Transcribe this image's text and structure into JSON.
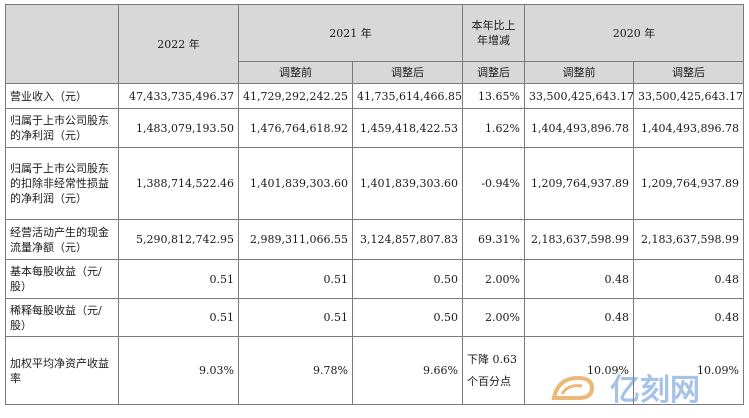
{
  "header": {
    "y2022": "2022 年",
    "y2021": "2021 年",
    "change": "本年比上年增减",
    "y2020": "2020 年",
    "before": "调整前",
    "after": "调整后",
    "change_after": "调整后"
  },
  "rows": [
    {
      "label": "营业收入（元）",
      "v2022": "47,433,735,496.37",
      "v2021b": "41,729,292,242.25",
      "v2021a": "41,735,614,466.85",
      "chg": "13.65%",
      "v2020b": "33,500,425,643.17",
      "v2020a": "33,500,425,643.17"
    },
    {
      "label": "归属于上市公司股东的净利润（元）",
      "v2022": "1,483,079,193.50",
      "v2021b": "1,476,764,618.92",
      "v2021a": "1,459,418,422.53",
      "chg": "1.62%",
      "v2020b": "1,404,493,896.78",
      "v2020a": "1,404,493,896.78"
    },
    {
      "label": "归属于上市公司股东的扣除非经常性损益的净利润（元）",
      "v2022": "1,388,714,522.46",
      "v2021b": "1,401,839,303.60",
      "v2021a": "1,401,839,303.60",
      "chg": "-0.94%",
      "v2020b": "1,209,764,937.89",
      "v2020a": "1,209,764,937.89"
    },
    {
      "label": "经营活动产生的现金流量净额（元）",
      "v2022": "5,290,812,742.95",
      "v2021b": "2,989,311,066.55",
      "v2021a": "3,124,857,807.83",
      "chg": "69.31%",
      "v2020b": "2,183,637,598.99",
      "v2020a": "2,183,637,598.99"
    },
    {
      "label": "基本每股收益（元/股）",
      "v2022": "0.51",
      "v2021b": "0.51",
      "v2021a": "0.50",
      "chg": "2.00%",
      "v2020b": "0.48",
      "v2020a": "0.48"
    },
    {
      "label": "稀释每股收益（元/股）",
      "v2022": "0.51",
      "v2021b": "0.51",
      "v2021a": "0.50",
      "chg": "2.00%",
      "v2020b": "0.48",
      "v2020a": "0.48"
    },
    {
      "label": "加权平均净资产收益率",
      "v2022": "9.03%",
      "v2021b": "9.78%",
      "v2021a": "9.66%",
      "chg": "下降 0.63 个百分点",
      "v2020b": "10.09%",
      "v2020a": "10.09%"
    }
  ],
  "watermark": {
    "text": "亿刻网",
    "colors": {
      "primary": "#e8a04a",
      "secondary": "#5b8fd6"
    }
  }
}
